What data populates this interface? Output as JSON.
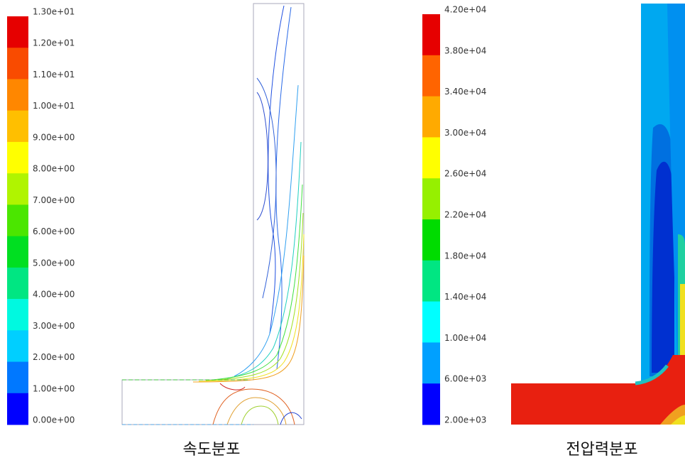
{
  "panels": [
    {
      "colorbar_labels": [
        "1.30e+01",
        "1.20e+01",
        "1.10e+01",
        "1.00e+01",
        "9.00e+00",
        "8.00e+00",
        "7.00e+00",
        "6.00e+00",
        "5.00e+00",
        "4.00e+00",
        "3.00e+00",
        "2.00e+00",
        "1.00e+00",
        "0.00e+00"
      ],
      "caption": "속도분포"
    },
    {
      "colorbar_labels": [
        "4.20e+04",
        "3.80e+04",
        "3.40e+04",
        "3.00e+04",
        "2.60e+04",
        "2.20e+04",
        "1.80e+04",
        "1.40e+04",
        "1.00e+04",
        "6.00e+03",
        "2.00e+03"
      ],
      "caption": "전압력분포"
    }
  ]
}
